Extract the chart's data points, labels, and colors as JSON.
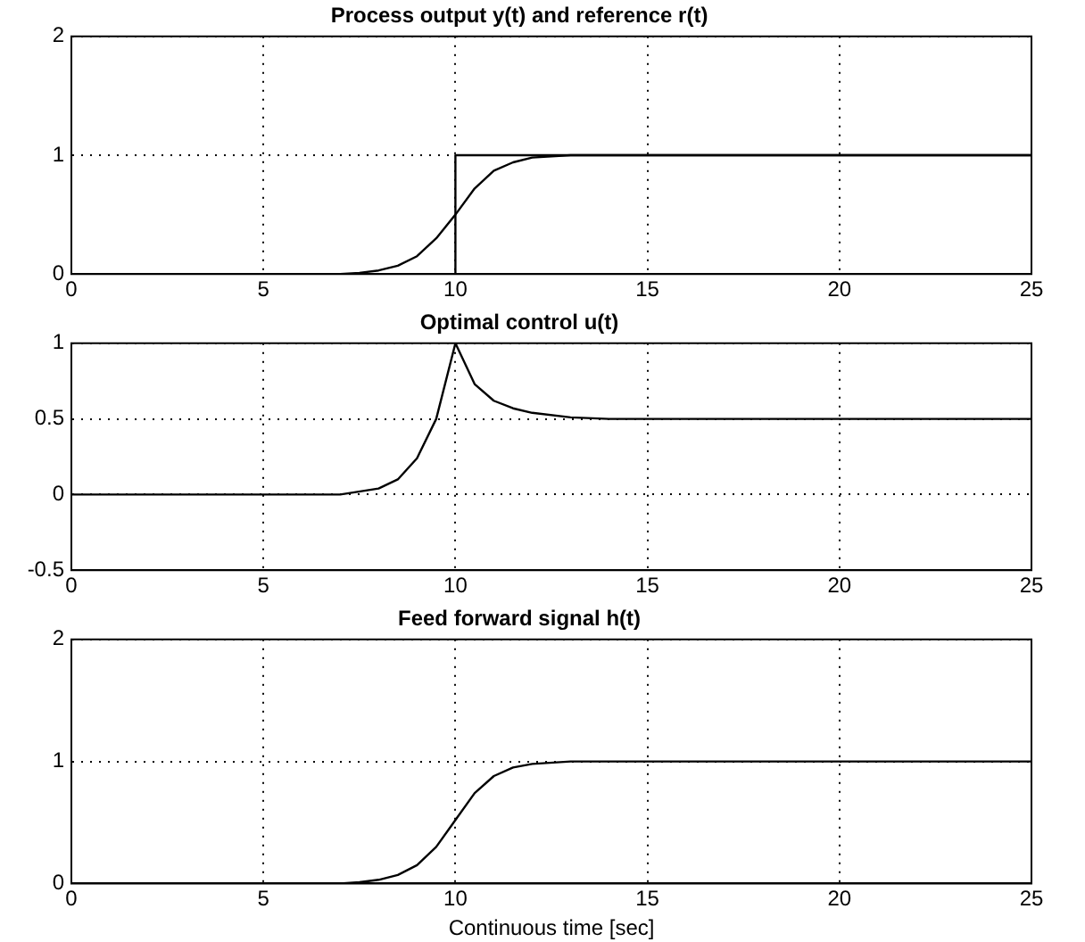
{
  "chart_data": [
    {
      "type": "line",
      "title": "Process output y(t) and reference r(t)",
      "xlim": [
        0,
        25
      ],
      "xticks": [
        0,
        5,
        10,
        15,
        20,
        25
      ],
      "ylim": [
        0,
        2
      ],
      "yticks": [
        0,
        1,
        2
      ],
      "grid": true,
      "legend": false,
      "marker": "none",
      "line_style": "solid",
      "series": [
        {
          "color": "#000000",
          "x": [
            0,
            7,
            7.5,
            8,
            8.5,
            9,
            9.5,
            10,
            10.5,
            11,
            11.5,
            12,
            13,
            25
          ],
          "values": [
            0,
            0,
            0.01,
            0.03,
            0.07,
            0.15,
            0.3,
            0.5,
            0.72,
            0.87,
            0.94,
            0.98,
            1,
            1
          ]
        },
        {
          "color": "#000000",
          "x": [
            0,
            10,
            10,
            25
          ],
          "values": [
            0,
            0,
            1,
            1
          ]
        }
      ]
    },
    {
      "type": "line",
      "title": "Optimal control u(t)",
      "xlim": [
        0,
        25
      ],
      "xticks": [
        0,
        5,
        10,
        15,
        20,
        25
      ],
      "ylim": [
        -0.5,
        1
      ],
      "yticks": [
        -0.5,
        0,
        0.5,
        1
      ],
      "grid": true,
      "legend": false,
      "marker": "none",
      "line_style": "solid",
      "series": [
        {
          "color": "#000000",
          "x": [
            0,
            7,
            8,
            8.5,
            9,
            9.5,
            10,
            10.5,
            11,
            11.5,
            12,
            13,
            14,
            25
          ],
          "values": [
            0,
            0,
            0.04,
            0.1,
            0.24,
            0.5,
            1,
            0.73,
            0.62,
            0.57,
            0.54,
            0.51,
            0.5,
            0.5
          ]
        }
      ]
    },
    {
      "type": "line",
      "title": "Feed forward signal h(t)",
      "xlabel": "Continuous time [sec]",
      "xlim": [
        0,
        25
      ],
      "xticks": [
        0,
        5,
        10,
        15,
        20,
        25
      ],
      "ylim": [
        0,
        2
      ],
      "yticks": [
        0,
        1,
        2
      ],
      "grid": true,
      "legend": false,
      "marker": "none",
      "line_style": "solid",
      "series": [
        {
          "color": "#000000",
          "x": [
            0,
            7,
            7.5,
            8,
            8.5,
            9,
            9.5,
            10,
            10.5,
            11,
            11.5,
            12,
            13,
            25
          ],
          "values": [
            0,
            0,
            0.01,
            0.03,
            0.07,
            0.15,
            0.3,
            0.52,
            0.74,
            0.88,
            0.95,
            0.98,
            1,
            1
          ]
        }
      ]
    }
  ]
}
